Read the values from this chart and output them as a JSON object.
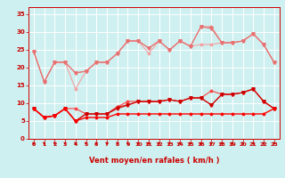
{
  "x": [
    0,
    1,
    2,
    3,
    4,
    5,
    6,
    7,
    8,
    9,
    10,
    11,
    12,
    13,
    14,
    15,
    16,
    17,
    18,
    19,
    20,
    21,
    22,
    23
  ],
  "series": [
    {
      "y": [
        24.5,
        16.0,
        21.5,
        21.5,
        14.0,
        19.0,
        21.5,
        21.5,
        24.0,
        27.5,
        27.5,
        24.0,
        27.5,
        25.0,
        27.5,
        26.0,
        26.5,
        26.5,
        27.0,
        27.0,
        27.5,
        29.5,
        26.5,
        21.5
      ],
      "color": "#f4a0a0",
      "marker": "D",
      "markersize": 1.5,
      "linewidth": 0.8
    },
    {
      "y": [
        24.5,
        16.0,
        21.5,
        21.5,
        18.5,
        19.0,
        21.5,
        21.5,
        24.0,
        27.5,
        27.5,
        25.5,
        27.5,
        25.0,
        27.5,
        26.0,
        31.5,
        31.5,
        27.0,
        27.0,
        27.5,
        29.5,
        26.5,
        21.5
      ],
      "color": "#f08080",
      "marker": "D",
      "markersize": 1.5,
      "linewidth": 0.8
    },
    {
      "y": [
        24.5,
        16.0,
        21.5,
        21.5,
        18.5,
        19.0,
        21.5,
        21.5,
        24.0,
        27.5,
        27.5,
        25.5,
        27.5,
        25.0,
        27.5,
        26.0,
        31.5,
        31.0,
        27.0,
        27.0,
        27.5,
        29.5,
        26.5,
        21.5
      ],
      "color": "#e87070",
      "marker": "v",
      "markersize": 2.5,
      "linewidth": 0.8
    },
    {
      "y": [
        8.5,
        6.0,
        6.5,
        8.5,
        8.5,
        7.0,
        7.0,
        7.0,
        9.0,
        10.5,
        10.5,
        10.5,
        10.5,
        11.0,
        10.5,
        11.5,
        11.5,
        13.5,
        12.5,
        12.5,
        13.0,
        14.0,
        10.5,
        8.5
      ],
      "color": "#ff4040",
      "marker": "D",
      "markersize": 1.5,
      "linewidth": 0.8
    },
    {
      "y": [
        8.5,
        6.0,
        6.5,
        8.5,
        5.0,
        7.0,
        7.0,
        7.0,
        9.0,
        9.5,
        10.5,
        10.5,
        10.5,
        11.0,
        10.5,
        11.5,
        11.5,
        9.5,
        12.5,
        12.5,
        13.0,
        14.0,
        10.5,
        8.5
      ],
      "color": "#ee2020",
      "marker": "D",
      "markersize": 1.5,
      "linewidth": 0.8
    },
    {
      "y": [
        8.5,
        6.0,
        6.5,
        8.5,
        5.0,
        7.0,
        7.0,
        7.0,
        8.5,
        9.5,
        10.5,
        10.5,
        10.5,
        11.0,
        10.5,
        11.5,
        11.5,
        9.5,
        12.5,
        12.5,
        13.0,
        14.0,
        10.5,
        8.5
      ],
      "color": "#cc0000",
      "marker": "v",
      "markersize": 2.5,
      "linewidth": 0.8
    },
    {
      "y": [
        8.5,
        6.0,
        6.5,
        8.5,
        5.0,
        6.0,
        6.0,
        6.0,
        7.0,
        7.0,
        7.0,
        7.0,
        7.0,
        7.0,
        7.0,
        7.0,
        7.0,
        7.0,
        7.0,
        7.0,
        7.0,
        7.0,
        7.0,
        8.5
      ],
      "color": "#ff0000",
      "marker": "D",
      "markersize": 1.5,
      "linewidth": 1.0
    }
  ],
  "xlim": [
    -0.5,
    23.5
  ],
  "ylim": [
    0,
    37
  ],
  "yticks": [
    0,
    5,
    10,
    15,
    20,
    25,
    30,
    35
  ],
  "xticks": [
    0,
    1,
    2,
    3,
    4,
    5,
    6,
    7,
    8,
    9,
    10,
    11,
    12,
    13,
    14,
    15,
    16,
    17,
    18,
    19,
    20,
    21,
    22,
    23
  ],
  "xlabel": "Vent moyen/en rafales ( km/h )",
  "bg_color": "#cff0f0",
  "grid_color": "#ffffff",
  "tick_color": "#cc0000",
  "label_color": "#cc0000"
}
